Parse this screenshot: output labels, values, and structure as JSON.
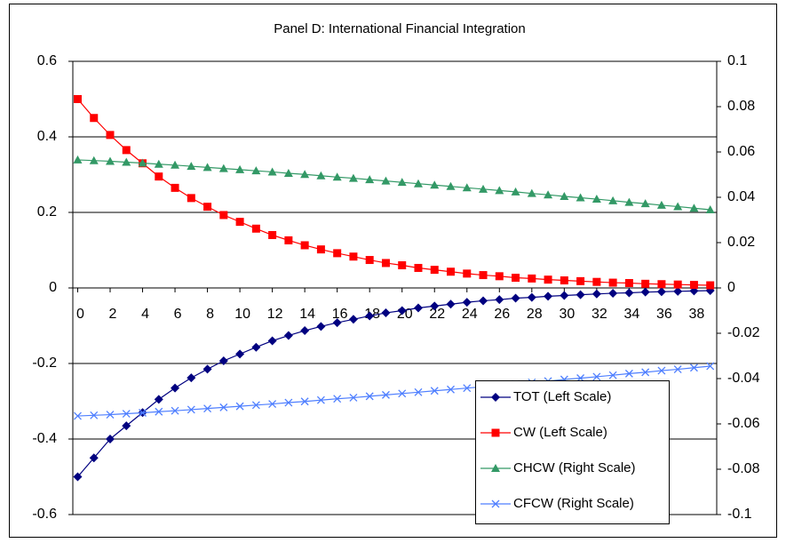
{
  "chart_data": {
    "type": "line",
    "title": "Panel D: International Financial Integration",
    "x": [
      0,
      1,
      2,
      3,
      4,
      5,
      6,
      7,
      8,
      9,
      10,
      11,
      12,
      13,
      14,
      15,
      16,
      17,
      18,
      19,
      20,
      21,
      22,
      23,
      24,
      25,
      26,
      27,
      28,
      29,
      30,
      31,
      32,
      33,
      34,
      35,
      36,
      37,
      38,
      39
    ],
    "xlim": [
      -0.3,
      39.4
    ],
    "xticks": [
      0,
      2,
      4,
      6,
      8,
      10,
      12,
      14,
      16,
      18,
      20,
      22,
      24,
      26,
      28,
      30,
      32,
      34,
      36,
      38
    ],
    "ylim": [
      -0.6,
      0.6
    ],
    "yticks": [
      0.6,
      0.4,
      0.2,
      0,
      -0.2,
      -0.4,
      -0.6
    ],
    "y2lim": [
      -0.1,
      0.1
    ],
    "y2ticks": [
      0.1,
      0.08,
      0.06,
      0.04,
      0.02,
      0,
      -0.02,
      -0.04,
      -0.06,
      -0.08,
      -0.1
    ],
    "grid": true,
    "series": [
      {
        "name": "TOT (Left Scale)",
        "color": "#000080",
        "marker": "diamond",
        "values": [
          -0.5,
          -0.45,
          -0.4,
          -0.365,
          -0.33,
          -0.295,
          -0.265,
          -0.238,
          -0.215,
          -0.193,
          -0.175,
          -0.157,
          -0.14,
          -0.126,
          -0.113,
          -0.102,
          -0.092,
          -0.083,
          -0.074,
          -0.066,
          -0.06,
          -0.053,
          -0.048,
          -0.043,
          -0.038,
          -0.034,
          -0.031,
          -0.027,
          -0.025,
          -0.022,
          -0.02,
          -0.018,
          -0.016,
          -0.014,
          -0.013,
          -0.011,
          -0.01,
          -0.009,
          -0.008,
          -0.007
        ]
      },
      {
        "name": "CW (Left Scale)",
        "color": "#ff0000",
        "marker": "square",
        "values": [
          0.5,
          0.45,
          0.405,
          0.365,
          0.33,
          0.295,
          0.265,
          0.238,
          0.215,
          0.193,
          0.175,
          0.157,
          0.14,
          0.126,
          0.113,
          0.102,
          0.092,
          0.083,
          0.074,
          0.066,
          0.06,
          0.053,
          0.048,
          0.043,
          0.038,
          0.034,
          0.031,
          0.027,
          0.025,
          0.022,
          0.02,
          0.018,
          0.016,
          0.014,
          0.013,
          0.011,
          0.01,
          0.009,
          0.008,
          0.007
        ]
      },
      {
        "name": "CHCW (Right Scale)",
        "color": "#339966",
        "marker": "triangle",
        "axis": "y2",
        "values": [
          0.0565,
          0.0562,
          0.0559,
          0.0555,
          0.0551,
          0.0546,
          0.0542,
          0.0537,
          0.0532,
          0.0527,
          0.0522,
          0.0517,
          0.0512,
          0.0506,
          0.0501,
          0.0495,
          0.0489,
          0.0484,
          0.0478,
          0.0472,
          0.0466,
          0.046,
          0.0454,
          0.0448,
          0.0442,
          0.0436,
          0.043,
          0.0424,
          0.0417,
          0.0411,
          0.0404,
          0.0398,
          0.0392,
          0.0385,
          0.0378,
          0.0372,
          0.0365,
          0.0359,
          0.0352,
          0.0345
        ]
      },
      {
        "name": "CFCW (Right Scale)",
        "color": "#4f7fff",
        "marker": "x",
        "axis": "y2",
        "values": [
          -0.0565,
          -0.0562,
          -0.0559,
          -0.0555,
          -0.0551,
          -0.0546,
          -0.0542,
          -0.0537,
          -0.0532,
          -0.0527,
          -0.0522,
          -0.0517,
          -0.0512,
          -0.0506,
          -0.0501,
          -0.0495,
          -0.0489,
          -0.0484,
          -0.0478,
          -0.0472,
          -0.0466,
          -0.046,
          -0.0454,
          -0.0448,
          -0.0442,
          -0.0436,
          -0.043,
          -0.0424,
          -0.0417,
          -0.0411,
          -0.0404,
          -0.0398,
          -0.0392,
          -0.0385,
          -0.0378,
          -0.0372,
          -0.0365,
          -0.0359,
          -0.0352,
          -0.0345
        ]
      }
    ]
  }
}
